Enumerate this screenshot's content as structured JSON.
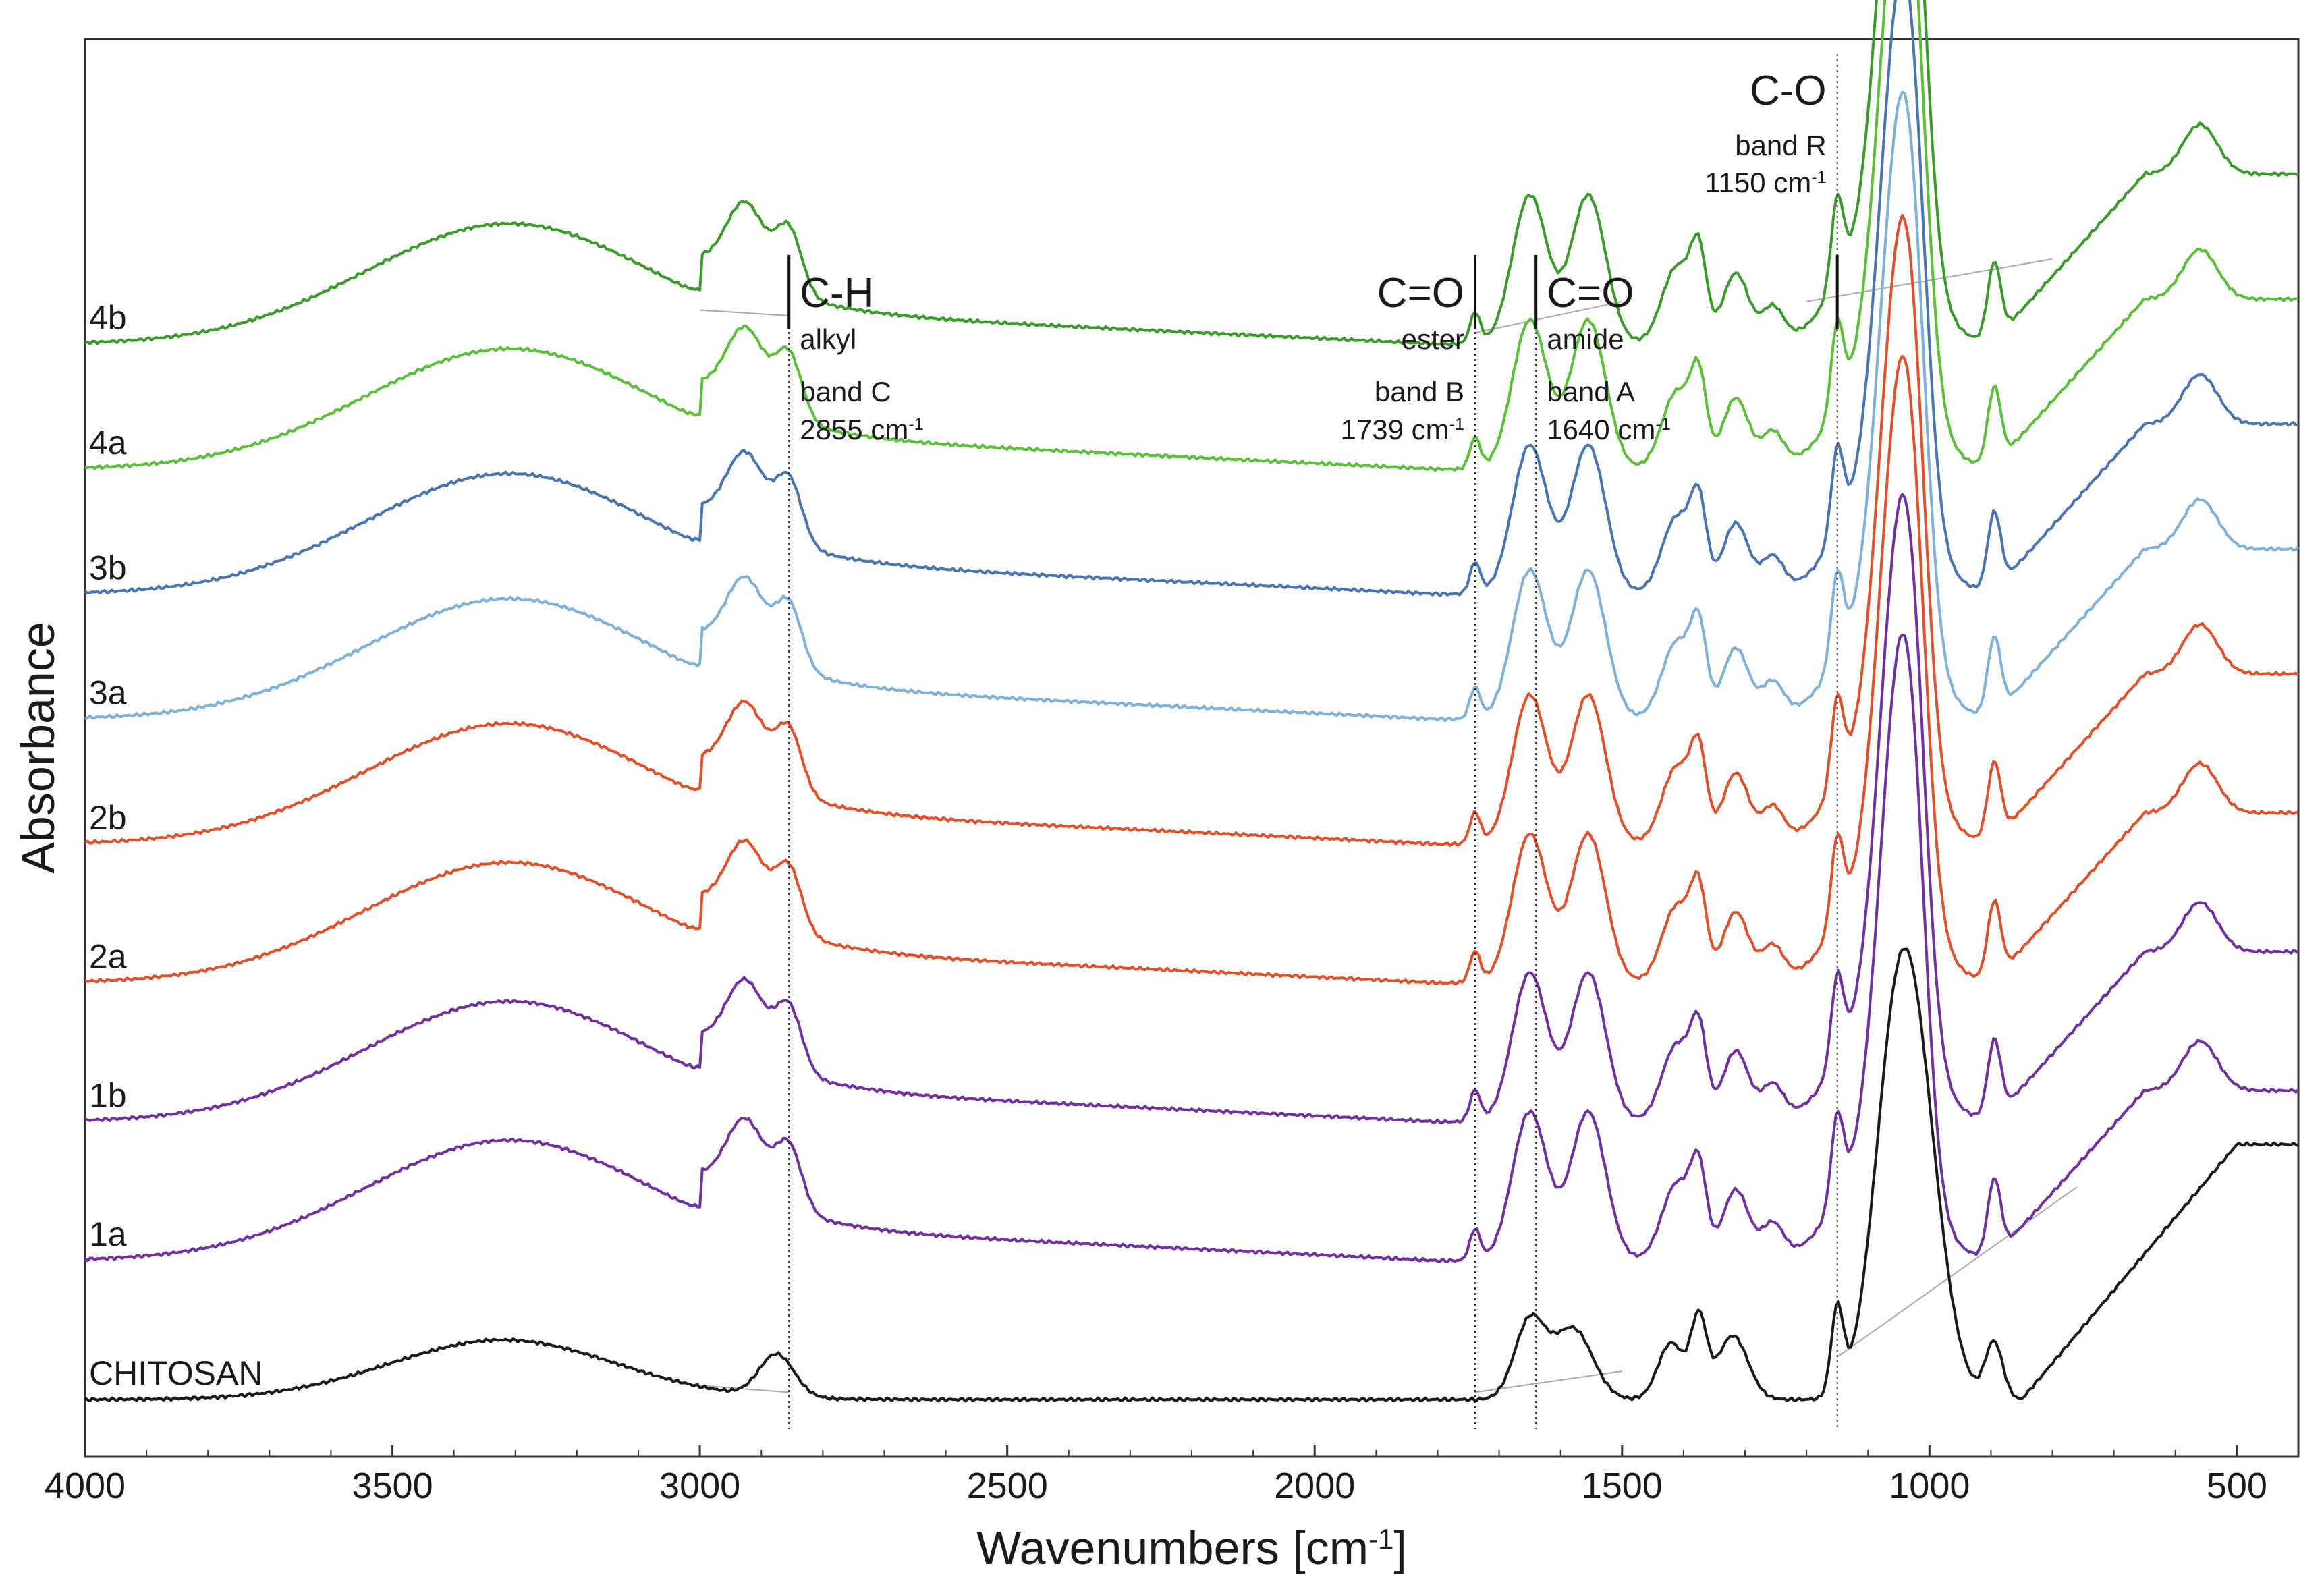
{
  "chart_data": {
    "type": "line",
    "title": "",
    "xlabel": "Wavenumbers [cm",
    "xlabel_sup": "-1",
    "xlabel_close": "]",
    "ylabel": "Absorbance",
    "xlim": [
      4000,
      400
    ],
    "x_reversed": true,
    "ylim": [
      0,
      10
    ],
    "grid": false,
    "x_ticks": [
      4000,
      3500,
      3000,
      2500,
      2000,
      1500,
      1000,
      500
    ],
    "x_tick_labels": [
      "4000",
      "3500",
      "3000",
      "2500",
      "2000",
      "1500",
      "1000",
      "500"
    ],
    "annotations": [
      {
        "id": "band-c",
        "x": 2855,
        "title": "C-H",
        "subtitle": "alkyl",
        "band": "band C",
        "wavenumber": "2855 cm",
        "sup": "-1",
        "align": "right"
      },
      {
        "id": "band-b",
        "x": 1739,
        "title": "C=O",
        "subtitle": "ester",
        "band": "band B",
        "wavenumber": "1739 cm",
        "sup": "-1",
        "align": "left"
      },
      {
        "id": "band-a",
        "x": 1640,
        "title": "C=O",
        "subtitle": "amide",
        "band": "band A",
        "wavenumber": "1640 cm",
        "sup": "-1",
        "align": "right"
      },
      {
        "id": "band-r",
        "x": 1150,
        "title": "C-O",
        "subtitle": "",
        "band": "band R",
        "wavenumber": "1150 cm",
        "sup": "-1",
        "align": "left"
      }
    ],
    "series": [
      {
        "name": "CHITOSAN",
        "color": "#1a1a1a",
        "offset": 0.0,
        "profile": "chitosan"
      },
      {
        "name": "1a",
        "color": "#7030a0",
        "offset": 1.0,
        "profile": "modified"
      },
      {
        "name": "1b",
        "color": "#7030a0",
        "offset": 2.0,
        "profile": "modified"
      },
      {
        "name": "2a",
        "color": "#e0502a",
        "offset": 3.0,
        "profile": "modified"
      },
      {
        "name": "2b",
        "color": "#e0502a",
        "offset": 4.0,
        "profile": "modified"
      },
      {
        "name": "3a",
        "color": "#7fb0d8",
        "offset": 4.9,
        "profile": "modified"
      },
      {
        "name": "3b",
        "color": "#4a74b0",
        "offset": 5.8,
        "profile": "modified"
      },
      {
        "name": "4a",
        "color": "#5cbf3a",
        "offset": 6.7,
        "profile": "modified"
      },
      {
        "name": "4b",
        "color": "#3a9a2a",
        "offset": 7.6,
        "profile": "modified"
      }
    ]
  }
}
